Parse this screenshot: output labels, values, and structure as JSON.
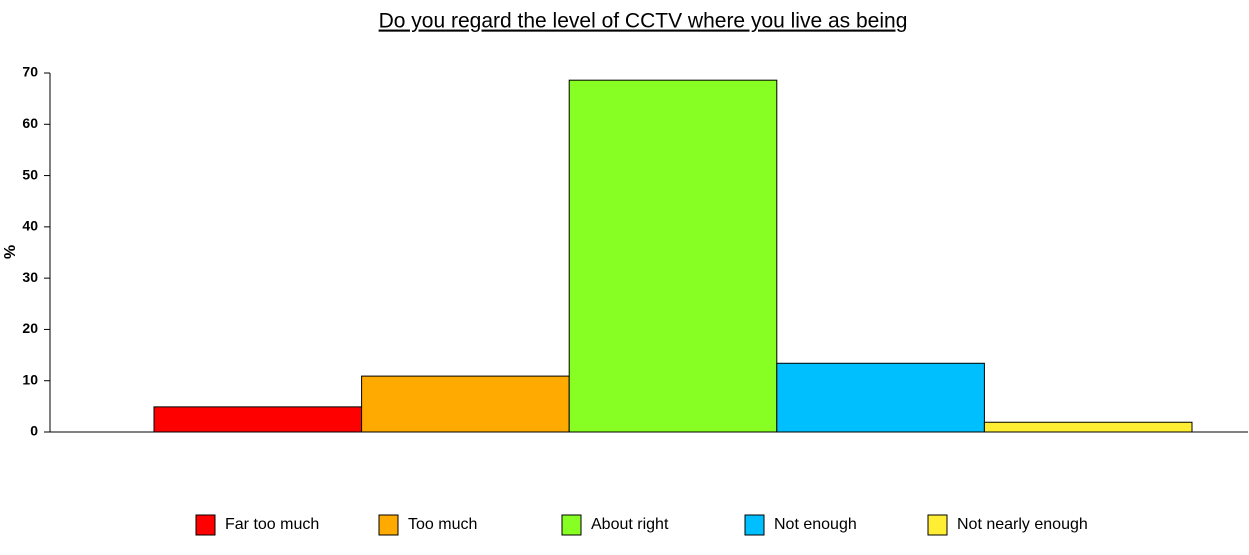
{
  "chart_data": {
    "type": "bar",
    "title": "Do you regard the level of CCTV  where you live as being",
    "y_label": "%",
    "series": [
      {
        "name": "Far too much",
        "color": "#ff0000",
        "values": [
          4.9
        ]
      },
      {
        "name": "Too much",
        "color": "#ffaa00",
        "values": [
          10.9
        ]
      },
      {
        "name": "About right",
        "color": "#88ff22",
        "values": [
          68.6
        ]
      },
      {
        "name": "Not enough",
        "color": "#00bfff",
        "values": [
          13.4
        ]
      },
      {
        "name": "Not nearly enough",
        "color": "#ffee33",
        "values": [
          1.9
        ]
      }
    ],
    "ylim": [
      0,
      70
    ],
    "yticks": [
      0,
      10,
      20,
      30,
      40,
      50,
      60,
      70
    ],
    "legend": "bottom"
  }
}
